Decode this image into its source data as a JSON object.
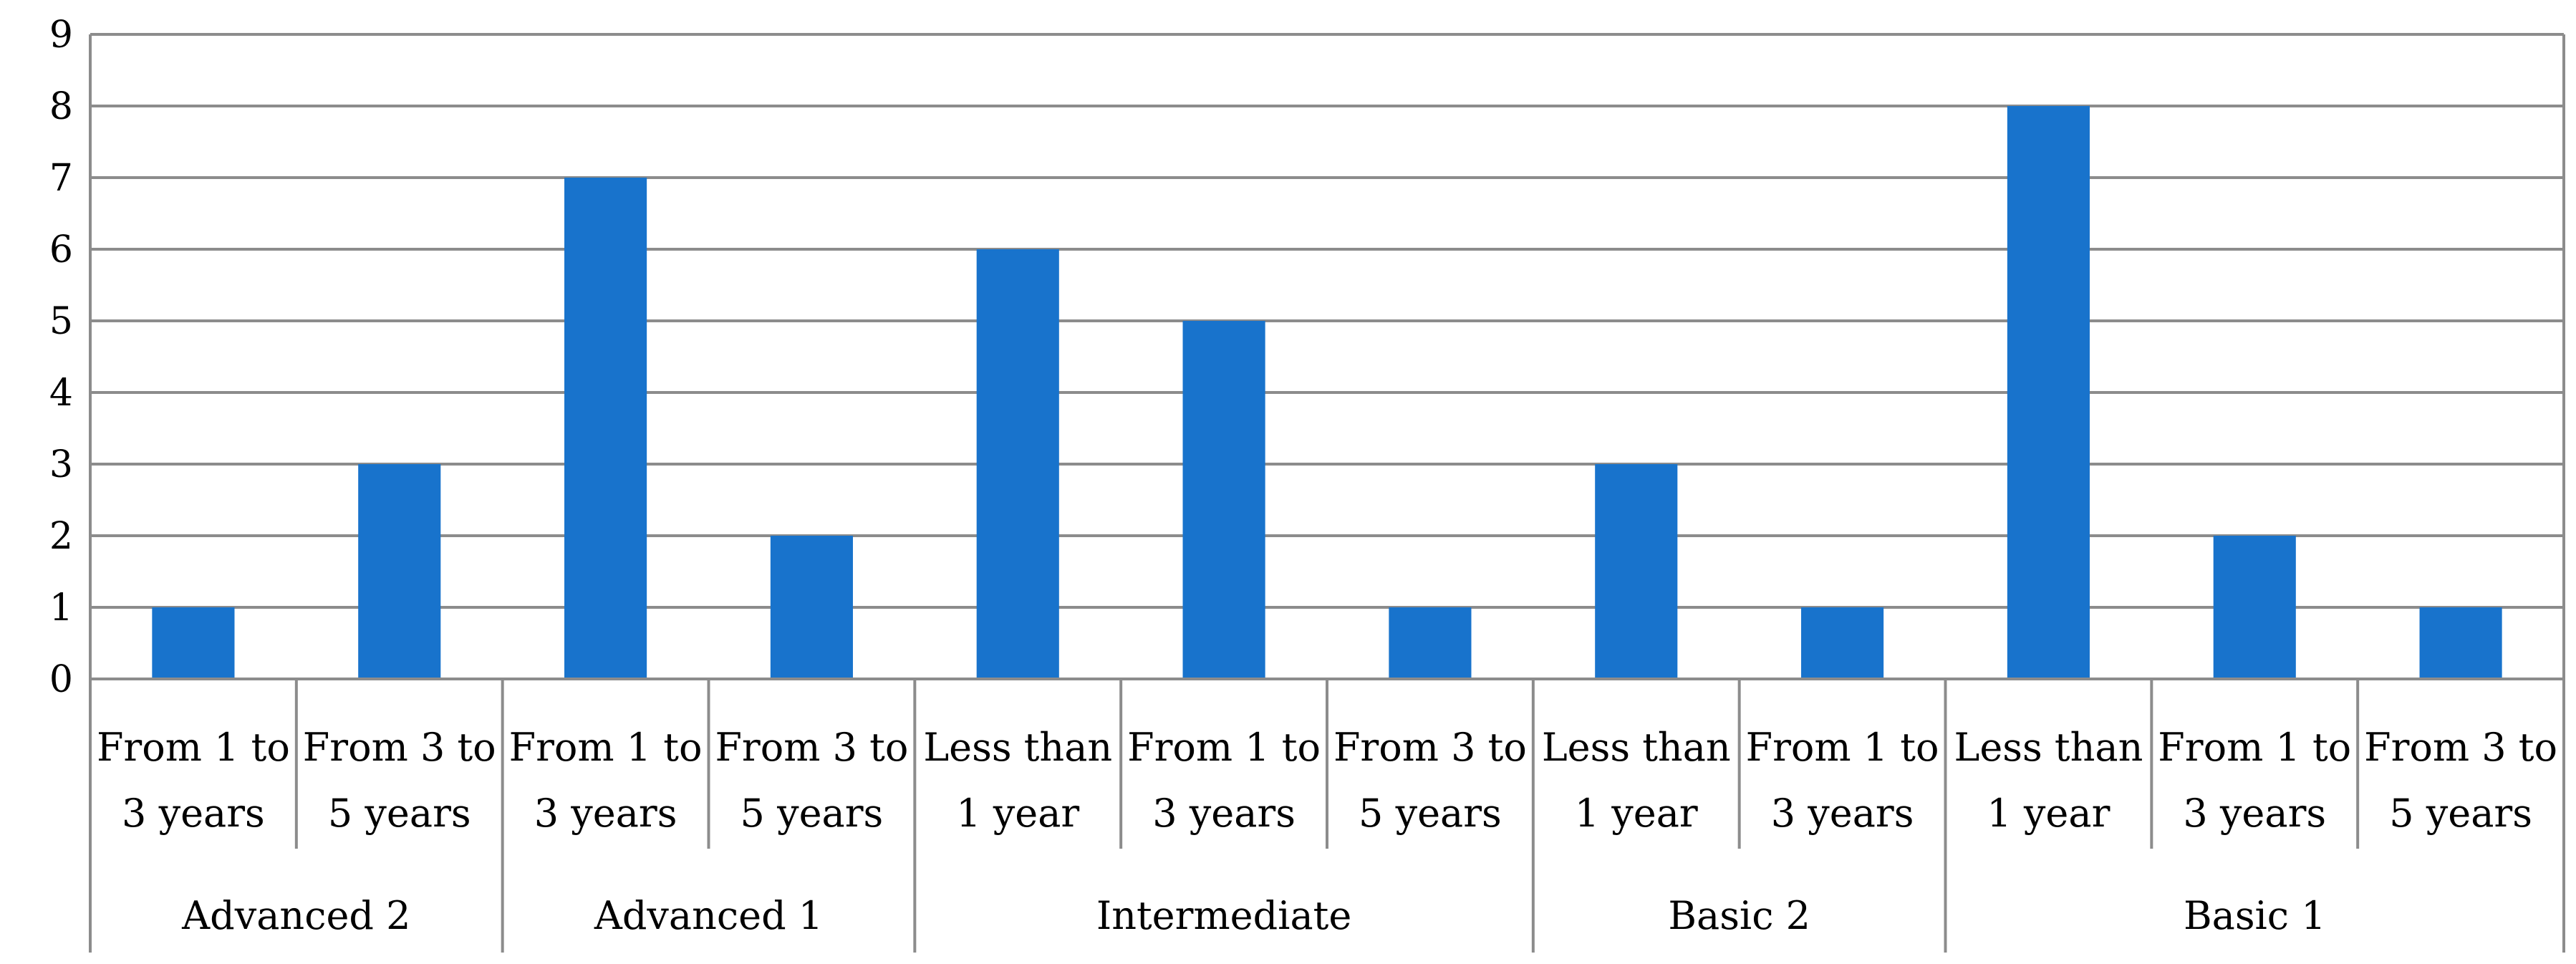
{
  "chart_data": {
    "type": "bar",
    "title": "",
    "xlabel": "",
    "ylabel": "",
    "ylim": [
      0,
      9
    ],
    "yticks": [
      0,
      1,
      2,
      3,
      4,
      5,
      6,
      7,
      8,
      9
    ],
    "grid": true,
    "bar_color": "#1873cc",
    "groups": [
      {
        "name": "Advanced 2",
        "categories": [
          {
            "label_lines": [
              "From 1 to",
              "3 years"
            ],
            "value": 1
          },
          {
            "label_lines": [
              "From 3 to",
              "5 years"
            ],
            "value": 3
          }
        ]
      },
      {
        "name": "Advanced 1",
        "categories": [
          {
            "label_lines": [
              "From 1 to",
              "3 years"
            ],
            "value": 7
          },
          {
            "label_lines": [
              "From 3 to",
              "5 years"
            ],
            "value": 2
          }
        ]
      },
      {
        "name": "Intermediate",
        "categories": [
          {
            "label_lines": [
              "Less than",
              "1 year"
            ],
            "value": 6
          },
          {
            "label_lines": [
              "From 1 to",
              "3 years"
            ],
            "value": 5
          },
          {
            "label_lines": [
              "From 3 to",
              "5 years"
            ],
            "value": 1
          }
        ]
      },
      {
        "name": "Basic 2",
        "categories": [
          {
            "label_lines": [
              "Less than",
              "1 year"
            ],
            "value": 3
          },
          {
            "label_lines": [
              "From 1 to",
              "3 years"
            ],
            "value": 1
          }
        ]
      },
      {
        "name": "Basic 1",
        "categories": [
          {
            "label_lines": [
              "Less than",
              "1 year"
            ],
            "value": 8
          },
          {
            "label_lines": [
              "From 1 to",
              "3 years"
            ],
            "value": 2
          },
          {
            "label_lines": [
              "From 3 to",
              "5 years"
            ],
            "value": 1
          }
        ]
      }
    ]
  }
}
